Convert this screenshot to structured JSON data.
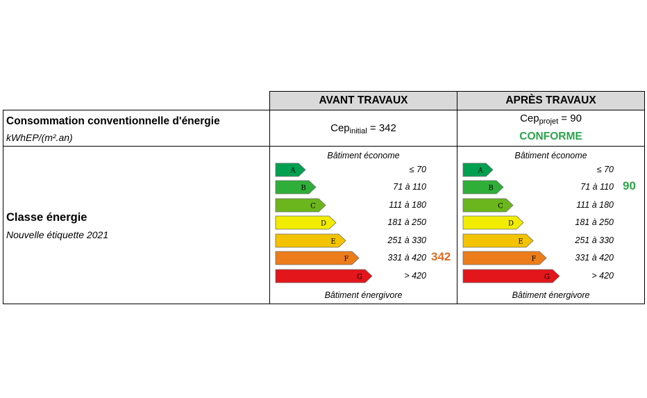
{
  "header": {
    "before": "AVANT TRAVAUX",
    "after": "APRÈS TRAVAUX"
  },
  "consumption": {
    "title": "Consommation conventionnelle d'énergie",
    "unit": "kWhEP/(m².an)",
    "before": {
      "prefix": "Cep",
      "sub": "initial",
      "suffix": " = 342"
    },
    "after": {
      "prefix": "Cep",
      "sub": "projet",
      "suffix": " = 90",
      "status": "CONFORME"
    }
  },
  "class_row": {
    "title": "Classe énergie",
    "subtitle": "Nouvelle étiquette 2021",
    "top_label": "Bâtiment économe",
    "bottom_label": "Bâtiment énergivore"
  },
  "classes": [
    {
      "letter": "A",
      "range": "≤ 70",
      "color": "#00a050"
    },
    {
      "letter": "B",
      "range": "71 à 110",
      "color": "#2faf3a"
    },
    {
      "letter": "C",
      "range": "111 à 180",
      "color": "#6bb61c"
    },
    {
      "letter": "D",
      "range": "181 à 250",
      "color": "#f2ec00"
    },
    {
      "letter": "E",
      "range": "251 à 330",
      "color": "#f4c300"
    },
    {
      "letter": "F",
      "range": "331 à 420",
      "color": "#ec7d1a"
    },
    {
      "letter": "G",
      "range": "> 420",
      "color": "#e3161b"
    }
  ],
  "before_value": {
    "text": "342",
    "class": "F",
    "color": "#e16c23"
  },
  "after_value": {
    "text": "90",
    "class": "B",
    "color": "#2ea44a"
  },
  "colors": {
    "conforme": "#2aa44a",
    "header_bg": "#d9d9d9"
  }
}
